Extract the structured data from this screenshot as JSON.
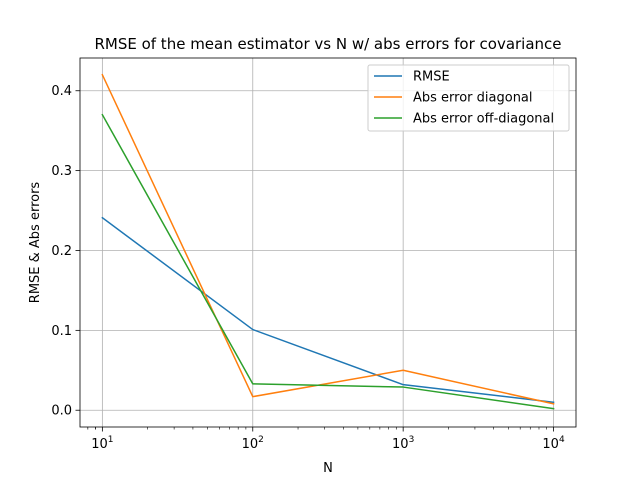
{
  "chart_data": {
    "type": "line",
    "title": "RMSE of the mean estimator vs N w/ abs errors for covariance",
    "xlabel": "N",
    "ylabel": "RMSE & Abs errors",
    "x_scale": "log",
    "x": [
      10,
      100,
      1000,
      10000
    ],
    "x_tick_labels": [
      {
        "base": "10",
        "exp": "1",
        "value": 10
      },
      {
        "base": "10",
        "exp": "2",
        "value": 100
      },
      {
        "base": "10",
        "exp": "3",
        "value": 1000
      },
      {
        "base": "10",
        "exp": "4",
        "value": 10000
      }
    ],
    "y_ticks": [
      "0.0",
      "0.1",
      "0.2",
      "0.3",
      "0.4"
    ],
    "xlim": [
      7.1,
      14100
    ],
    "ylim": [
      -0.021,
      0.441
    ],
    "grid": true,
    "legend_position": "top-right",
    "series": [
      {
        "name": "RMSE",
        "color": "#1f77b4",
        "values": [
          0.241,
          0.101,
          0.032,
          0.01
        ]
      },
      {
        "name": "Abs error diagonal",
        "color": "#ff7f0e",
        "values": [
          0.42,
          0.017,
          0.05,
          0.008
        ]
      },
      {
        "name": "Abs error off-diagonal",
        "color": "#2ca02c",
        "values": [
          0.37,
          0.033,
          0.029,
          0.002
        ]
      }
    ]
  }
}
